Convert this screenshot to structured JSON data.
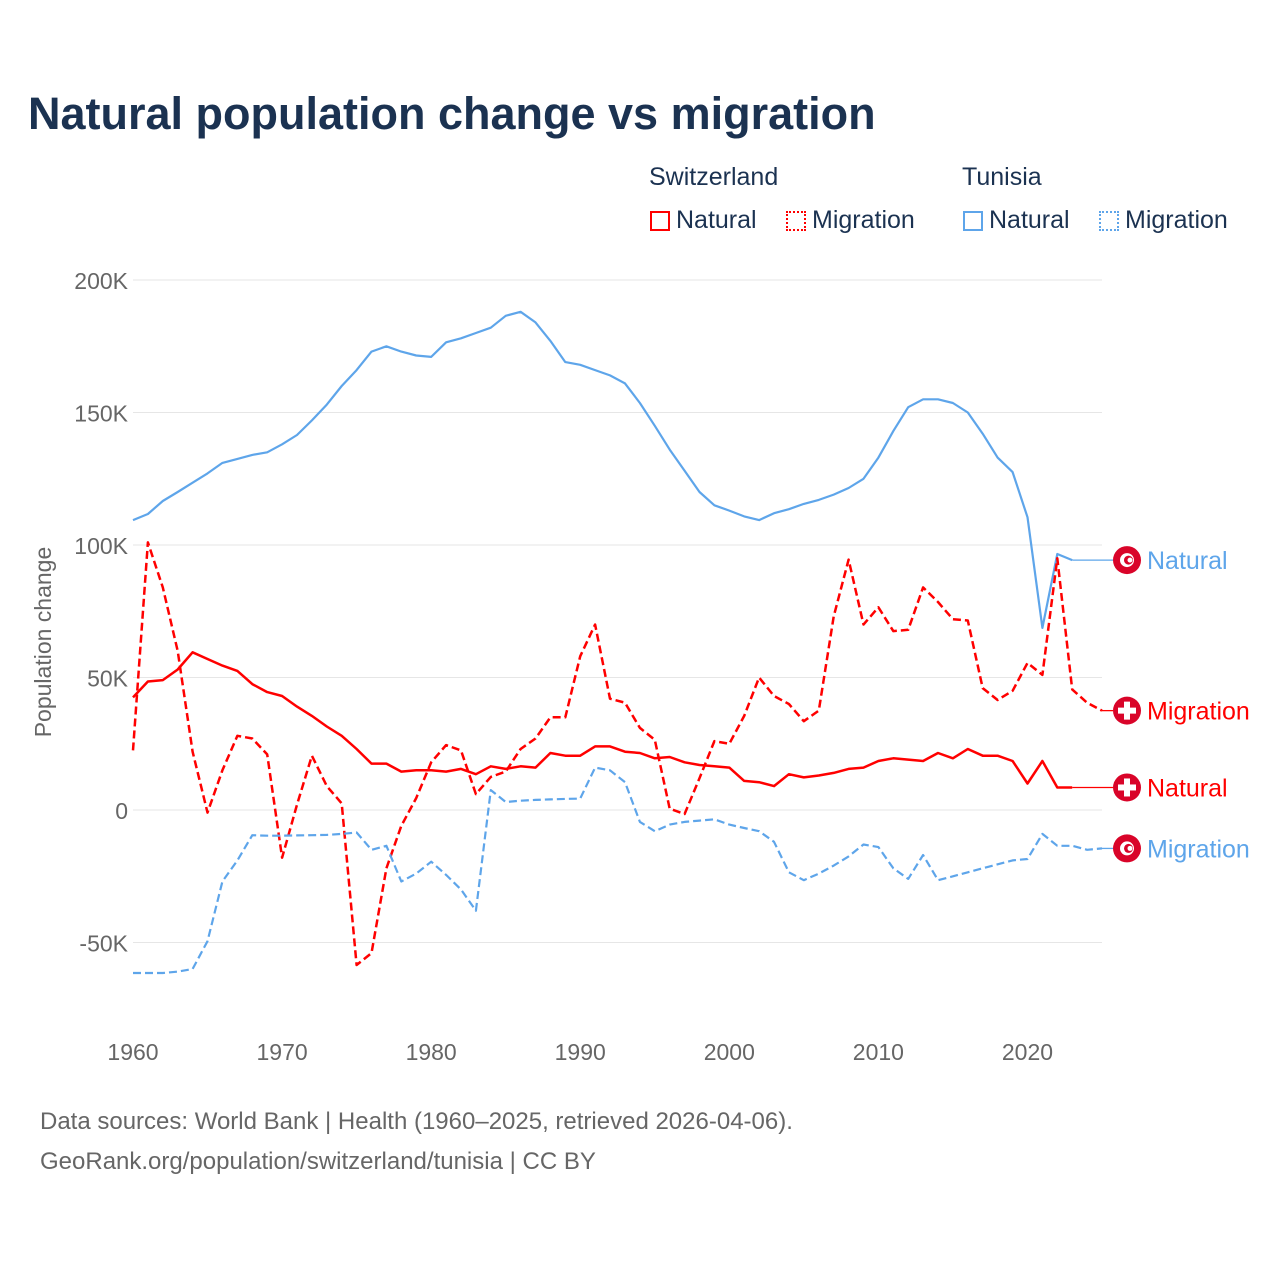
{
  "title": "Natural population change vs migration",
  "legend": {
    "groups": [
      {
        "name": "Switzerland",
        "items": [
          "Natural",
          "Migration"
        ],
        "color": "#ff0000"
      },
      {
        "name": "Tunisia",
        "items": [
          "Natural",
          "Migration"
        ],
        "color": "#5ea5ea"
      }
    ]
  },
  "footer": {
    "line1": "Data sources: World Bank | Health (1960–2025, retrieved 2026-04-06).",
    "line2": "GeoRank.org/population/switzerland/tunisia | CC BY"
  },
  "chart_data": {
    "type": "line",
    "title": "Natural population change vs migration",
    "xlabel": "",
    "ylabel": "Population change",
    "xlim": [
      1960,
      2025
    ],
    "ylim": [
      -50000,
      200000
    ],
    "x_ticks": [
      1960,
      1970,
      1980,
      1990,
      2000,
      2010,
      2020
    ],
    "y_ticks": [
      {
        "value": 200000,
        "label": "200K"
      },
      {
        "value": 150000,
        "label": "150K"
      },
      {
        "value": 100000,
        "label": "100K"
      },
      {
        "value": 50000,
        "label": "50K"
      },
      {
        "value": 0,
        "label": "0"
      },
      {
        "value": -50000,
        "label": "-50K"
      }
    ],
    "grid": true,
    "legend_position": "top-right",
    "series": [
      {
        "name": "Tunisia Natural",
        "label": "Natural",
        "country": "Tunisia",
        "color": "#5ea5ea",
        "dashed": false,
        "start": 1960,
        "values": [
          109400,
          111700,
          116600,
          120000,
          123500,
          127000,
          131000,
          132500,
          134000,
          135000,
          138000,
          141500,
          147000,
          153000,
          160000,
          166000,
          173000,
          175000,
          173000,
          171500,
          171000,
          176500,
          178000,
          180000,
          182000,
          186500,
          188000,
          184000,
          177000,
          169000,
          168000,
          166000,
          164000,
          161000,
          153600,
          145000,
          136000,
          128000,
          120000,
          115000,
          113000,
          110800,
          109400,
          112000,
          113500,
          115500,
          117000,
          119000,
          121500,
          125000,
          133000,
          143000,
          152000,
          155000,
          155000,
          153600,
          150000,
          142000,
          133000,
          127500,
          110500,
          68700,
          96600,
          94300
        ]
      },
      {
        "name": "Switzerland Migration",
        "label": "Migration",
        "country": "Switzerland",
        "color": "#ff0000",
        "dashed": true,
        "start": 1960,
        "values": [
          22500,
          101000,
          84000,
          60000,
          22000,
          -1000,
          15000,
          28000,
          27000,
          21000,
          -18000,
          2000,
          20500,
          9000,
          2500,
          -58500,
          -54000,
          -22000,
          -6000,
          4500,
          18000,
          24500,
          22500,
          6000,
          12500,
          14500,
          23000,
          27000,
          35000,
          35000,
          58000,
          70000,
          42000,
          40500,
          31000,
          26500,
          500,
          -1500,
          12000,
          26000,
          25000,
          35500,
          50000,
          43000,
          40000,
          33500,
          37500,
          73000,
          94500,
          70000,
          76500,
          67500,
          68000,
          84000,
          78500,
          72000,
          71500,
          46000,
          41500,
          45000,
          55500,
          51000,
          95000,
          45500,
          40500,
          37500
        ]
      },
      {
        "name": "Switzerland Natural",
        "label": "Natural",
        "country": "Switzerland",
        "color": "#ff0000",
        "dashed": false,
        "start": 1960,
        "values": [
          42500,
          48500,
          49000,
          53000,
          59500,
          57000,
          54500,
          52500,
          47500,
          44500,
          43000,
          39000,
          35500,
          31500,
          28000,
          23000,
          17500,
          17500,
          14500,
          15000,
          15000,
          14500,
          15500,
          13500,
          16500,
          15500,
          16500,
          16000,
          21500,
          20500,
          20500,
          24000,
          24000,
          22000,
          21500,
          19500,
          20000,
          18000,
          17000,
          16500,
          16000,
          11000,
          10500,
          9000,
          13500,
          12300,
          13000,
          14000,
          15500,
          16000,
          18500,
          19500,
          19000,
          18500,
          21500,
          19500,
          23000,
          20500,
          20500,
          18500,
          10000,
          18500,
          8500,
          8500
        ]
      },
      {
        "name": "Tunisia Migration",
        "label": "Migration",
        "country": "Tunisia",
        "color": "#5ea5ea",
        "dashed": true,
        "start": 1960,
        "values": [
          -61500,
          -61500,
          -61500,
          -61000,
          -60000,
          -49500,
          -27000,
          -19000,
          -9500,
          -9700,
          -9700,
          -9600,
          -9500,
          -9400,
          -9000,
          -8500,
          -15000,
          -13500,
          -27000,
          -24000,
          -19500,
          -24500,
          -30000,
          -38000,
          7500,
          3000,
          3500,
          3800,
          4000,
          4200,
          4300,
          16000,
          15000,
          10500,
          -4500,
          -8000,
          -5500,
          -4500,
          -4000,
          -3500,
          -5500,
          -6800,
          -8000,
          -12000,
          -23500,
          -26500,
          -24000,
          -21000,
          -17500,
          -13000,
          -14000,
          -22000,
          -26000,
          -17000,
          -26500,
          -25000,
          -23500,
          -22000,
          -20500,
          -19000,
          -18500,
          -9000,
          -13500,
          -13500,
          -15000,
          -14500
        ]
      }
    ]
  }
}
